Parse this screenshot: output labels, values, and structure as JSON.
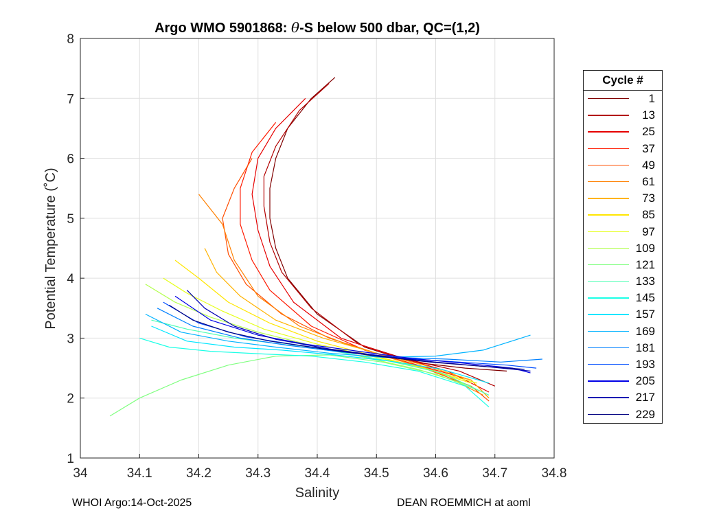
{
  "chart_data": {
    "type": "line",
    "title": "Argo WMO 5901868: θ-S below 500 dbar,  QC=(1,2)",
    "title_parts": {
      "pre": "Argo WMO 5901868: ",
      "symbol": "θ",
      "post": "-S below 500 dbar,  QC=(1,2)"
    },
    "xlabel": "Salinity",
    "ylabel": "Potential Temperature (˚C)",
    "xlim": [
      34.0,
      34.8
    ],
    "ylim": [
      1,
      8
    ],
    "xticks": [
      34,
      34.1,
      34.2,
      34.3,
      34.4,
      34.5,
      34.6,
      34.7,
      34.8
    ],
    "xtick_labels": [
      "34",
      "34.1",
      "34.2",
      "34.3",
      "34.4",
      "34.5",
      "34.6",
      "34.7",
      "34.8"
    ],
    "yticks": [
      1,
      2,
      3,
      4,
      5,
      6,
      7,
      8
    ],
    "ytick_labels": [
      "1",
      "2",
      "3",
      "4",
      "5",
      "6",
      "7",
      "8"
    ],
    "grid": true,
    "legend": {
      "title": "Cycle #",
      "position": "outside-right",
      "entries": [
        {
          "label": "1",
          "color": "#800000"
        },
        {
          "label": "13",
          "color": "#b20000"
        },
        {
          "label": "25",
          "color": "#e60000"
        },
        {
          "label": "37",
          "color": "#ff1a00"
        },
        {
          "label": "49",
          "color": "#ff4d00"
        },
        {
          "label": "61",
          "color": "#ff8000"
        },
        {
          "label": "73",
          "color": "#ffb300"
        },
        {
          "label": "85",
          "color": "#ffe600"
        },
        {
          "label": "97",
          "color": "#e6ff1a"
        },
        {
          "label": "109",
          "color": "#b3ff4d"
        },
        {
          "label": "121",
          "color": "#80ff80"
        },
        {
          "label": "133",
          "color": "#4dffb3"
        },
        {
          "label": "145",
          "color": "#1affe6"
        },
        {
          "label": "157",
          "color": "#00e6ff"
        },
        {
          "label": "169",
          "color": "#00b3ff"
        },
        {
          "label": "181",
          "color": "#0080ff"
        },
        {
          "label": "193",
          "color": "#004dff"
        },
        {
          "label": "205",
          "color": "#0000e6"
        },
        {
          "label": "217",
          "color": "#0000b3"
        },
        {
          "label": "229",
          "color": "#000080"
        }
      ]
    },
    "series": [
      {
        "name": "1",
        "color": "#800000",
        "x": [
          34.43,
          34.39,
          34.35,
          34.33,
          34.32,
          34.32,
          34.33,
          34.35,
          34.4,
          34.48,
          34.56,
          34.65,
          34.72
        ],
        "y": [
          7.35,
          7.0,
          6.5,
          6.0,
          5.5,
          5.0,
          4.5,
          4.0,
          3.4,
          2.85,
          2.6,
          2.5,
          2.45
        ]
      },
      {
        "name": "13",
        "color": "#b20000",
        "x": [
          34.42,
          34.37,
          34.33,
          34.31,
          34.31,
          34.32,
          34.34,
          34.39,
          34.47,
          34.55,
          34.64,
          34.7
        ],
        "y": [
          7.25,
          6.8,
          6.2,
          5.7,
          5.2,
          4.6,
          4.1,
          3.5,
          2.9,
          2.65,
          2.45,
          2.2
        ]
      },
      {
        "name": "25",
        "color": "#e60000",
        "x": [
          34.38,
          34.33,
          34.3,
          34.29,
          34.3,
          34.32,
          34.36,
          34.44,
          34.53,
          34.62,
          34.69
        ],
        "y": [
          7.0,
          6.5,
          6.0,
          5.4,
          4.8,
          4.2,
          3.6,
          3.0,
          2.7,
          2.45,
          2.1
        ]
      },
      {
        "name": "37",
        "color": "#ff1a00",
        "x": [
          34.33,
          34.29,
          34.27,
          34.27,
          34.29,
          34.32,
          34.39,
          34.48,
          34.57,
          34.66,
          34.69
        ],
        "y": [
          6.6,
          6.1,
          5.5,
          4.9,
          4.3,
          3.8,
          3.2,
          2.8,
          2.55,
          2.3,
          2.0
        ]
      },
      {
        "name": "49",
        "color": "#ff4d00",
        "x": [
          34.29,
          34.26,
          34.24,
          34.25,
          34.28,
          34.34,
          34.42,
          34.5,
          34.58,
          34.66,
          34.69
        ],
        "y": [
          6.0,
          5.5,
          5.0,
          4.4,
          3.9,
          3.4,
          3.0,
          2.75,
          2.5,
          2.2,
          1.95
        ]
      },
      {
        "name": "61",
        "color": "#ff8000",
        "x": [
          34.2,
          34.24,
          34.26,
          34.3,
          34.37,
          34.45,
          34.53,
          34.6,
          34.68
        ],
        "y": [
          5.4,
          4.9,
          4.3,
          3.7,
          3.2,
          2.9,
          2.65,
          2.45,
          2.05
        ]
      },
      {
        "name": "73",
        "color": "#ffb300",
        "x": [
          34.21,
          34.23,
          34.27,
          34.33,
          34.41,
          34.5,
          34.58,
          34.66,
          34.69
        ],
        "y": [
          4.5,
          4.1,
          3.7,
          3.3,
          3.0,
          2.75,
          2.55,
          2.3,
          2.0
        ]
      },
      {
        "name": "85",
        "color": "#ffe600",
        "x": [
          34.16,
          34.2,
          34.25,
          34.32,
          34.4,
          34.49,
          34.58,
          34.66
        ],
        "y": [
          4.3,
          4.0,
          3.6,
          3.25,
          2.95,
          2.72,
          2.5,
          2.25
        ]
      },
      {
        "name": "97",
        "color": "#e6ff1a",
        "x": [
          34.14,
          34.18,
          34.24,
          34.31,
          34.4,
          34.49,
          34.58,
          34.67
        ],
        "y": [
          4.0,
          3.75,
          3.45,
          3.15,
          2.9,
          2.7,
          2.5,
          2.25
        ]
      },
      {
        "name": "109",
        "color": "#b3ff4d",
        "x": [
          34.11,
          34.16,
          34.22,
          34.3,
          34.39,
          34.48,
          34.57,
          34.66
        ],
        "y": [
          3.9,
          3.6,
          3.35,
          3.1,
          2.88,
          2.68,
          2.48,
          2.2
        ]
      },
      {
        "name": "121",
        "color": "#80ff80",
        "x": [
          34.05,
          34.1,
          34.17,
          34.25,
          34.33,
          34.42,
          34.51,
          34.6,
          34.68
        ],
        "y": [
          1.7,
          2.0,
          2.3,
          2.55,
          2.7,
          2.72,
          2.6,
          2.4,
          2.1
        ]
      },
      {
        "name": "133",
        "color": "#4dffb3",
        "x": [
          34.12,
          34.18,
          34.26,
          34.34,
          34.43,
          34.52,
          34.61,
          34.69
        ],
        "y": [
          3.3,
          3.15,
          3.0,
          2.9,
          2.78,
          2.62,
          2.42,
          2.05
        ]
      },
      {
        "name": "145",
        "color": "#1affe6",
        "x": [
          34.1,
          34.15,
          34.22,
          34.3,
          34.39,
          34.48,
          34.57,
          34.65,
          34.69
        ],
        "y": [
          3.0,
          2.85,
          2.78,
          2.74,
          2.7,
          2.6,
          2.45,
          2.2,
          1.85
        ]
      },
      {
        "name": "157",
        "color": "#00e6ff",
        "x": [
          34.12,
          34.18,
          34.26,
          34.34,
          34.43,
          34.52,
          34.61,
          34.69
        ],
        "y": [
          3.2,
          2.95,
          2.85,
          2.8,
          2.72,
          2.62,
          2.48,
          2.25
        ]
      },
      {
        "name": "169",
        "color": "#00b3ff",
        "x": [
          34.11,
          34.17,
          34.25,
          34.33,
          34.42,
          34.51,
          34.6,
          34.68,
          34.76
        ],
        "y": [
          3.4,
          3.1,
          2.95,
          2.85,
          2.75,
          2.68,
          2.7,
          2.8,
          3.05
        ]
      },
      {
        "name": "181",
        "color": "#0080ff",
        "x": [
          34.13,
          34.19,
          34.27,
          34.35,
          34.44,
          34.53,
          34.62,
          34.71,
          34.78
        ],
        "y": [
          3.5,
          3.2,
          3.0,
          2.88,
          2.77,
          2.68,
          2.65,
          2.6,
          2.65
        ]
      },
      {
        "name": "193",
        "color": "#004dff",
        "x": [
          34.14,
          34.2,
          34.28,
          34.37,
          34.46,
          34.55,
          34.64,
          34.72,
          34.77
        ],
        "y": [
          3.6,
          3.25,
          3.02,
          2.88,
          2.76,
          2.66,
          2.6,
          2.55,
          2.5
        ]
      },
      {
        "name": "205",
        "color": "#0000e6",
        "x": [
          34.16,
          34.22,
          34.3,
          34.38,
          34.47,
          34.56,
          34.65,
          34.73,
          34.76
        ],
        "y": [
          3.7,
          3.3,
          3.05,
          2.9,
          2.78,
          2.66,
          2.58,
          2.5,
          2.42
        ]
      },
      {
        "name": "217",
        "color": "#0000b3",
        "x": [
          34.18,
          34.21,
          34.26,
          34.33,
          34.42,
          34.51,
          34.6,
          34.69,
          34.76
        ],
        "y": [
          3.8,
          3.5,
          3.2,
          2.98,
          2.82,
          2.7,
          2.6,
          2.52,
          2.45
        ]
      },
      {
        "name": "229",
        "color": "#000080",
        "x": [
          34.15,
          34.19,
          34.25,
          34.32,
          34.41,
          34.5,
          34.59,
          34.68,
          34.75
        ],
        "y": [
          3.55,
          3.3,
          3.1,
          2.95,
          2.82,
          2.7,
          2.6,
          2.53,
          2.48
        ]
      }
    ]
  },
  "footer": {
    "left": "WHOI Argo:14-Oct-2025",
    "right": "DEAN ROEMMICH at aoml"
  }
}
